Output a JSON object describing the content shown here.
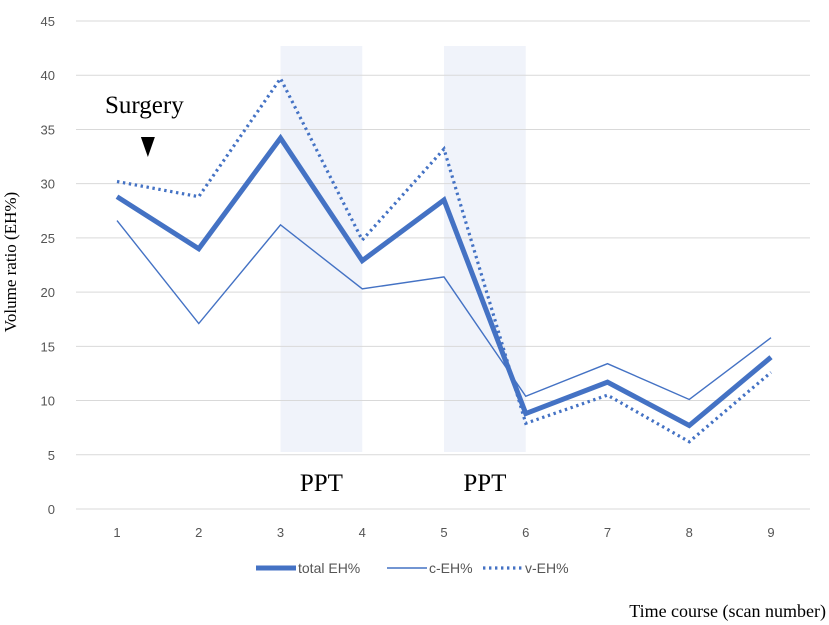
{
  "chart_data": {
    "type": "line",
    "x": [
      1,
      2,
      3,
      4,
      5,
      6,
      7,
      8,
      9
    ],
    "xticks": [
      "1",
      "2",
      "3",
      "4",
      "5",
      "6",
      "7",
      "8",
      "9"
    ],
    "xlabel": "Time course (scan number)",
    "ylabel": "Volume ratio (EH%)",
    "ylim": [
      0,
      45
    ],
    "yticks": [
      0,
      5,
      10,
      15,
      20,
      25,
      30,
      35,
      40,
      45
    ],
    "grid": true,
    "legend_position": "bottom",
    "series": [
      {
        "name": "total EH%",
        "style": "thick",
        "color": "#4472C4",
        "values": [
          28.8,
          24.0,
          34.2,
          22.9,
          28.5,
          8.8,
          11.7,
          7.7,
          14.0
        ]
      },
      {
        "name": "c-EH%",
        "style": "thin",
        "color": "#4472C4",
        "values": [
          26.6,
          17.1,
          26.2,
          20.3,
          21.4,
          10.4,
          13.4,
          10.1,
          15.8
        ]
      },
      {
        "name": "v-EH%",
        "style": "dotted",
        "color": "#4472C4",
        "values": [
          30.2,
          28.8,
          39.7,
          24.8,
          33.2,
          7.9,
          10.5,
          6.2,
          12.6
        ]
      }
    ],
    "shaded_regions": [
      {
        "from": 3,
        "to": 4,
        "label": "PPT"
      },
      {
        "from": 5,
        "to": 6,
        "label": "PPT"
      }
    ],
    "annotations": [
      {
        "text": "Surgery",
        "at_x": 1.5,
        "marker": "arrow-down"
      }
    ]
  }
}
